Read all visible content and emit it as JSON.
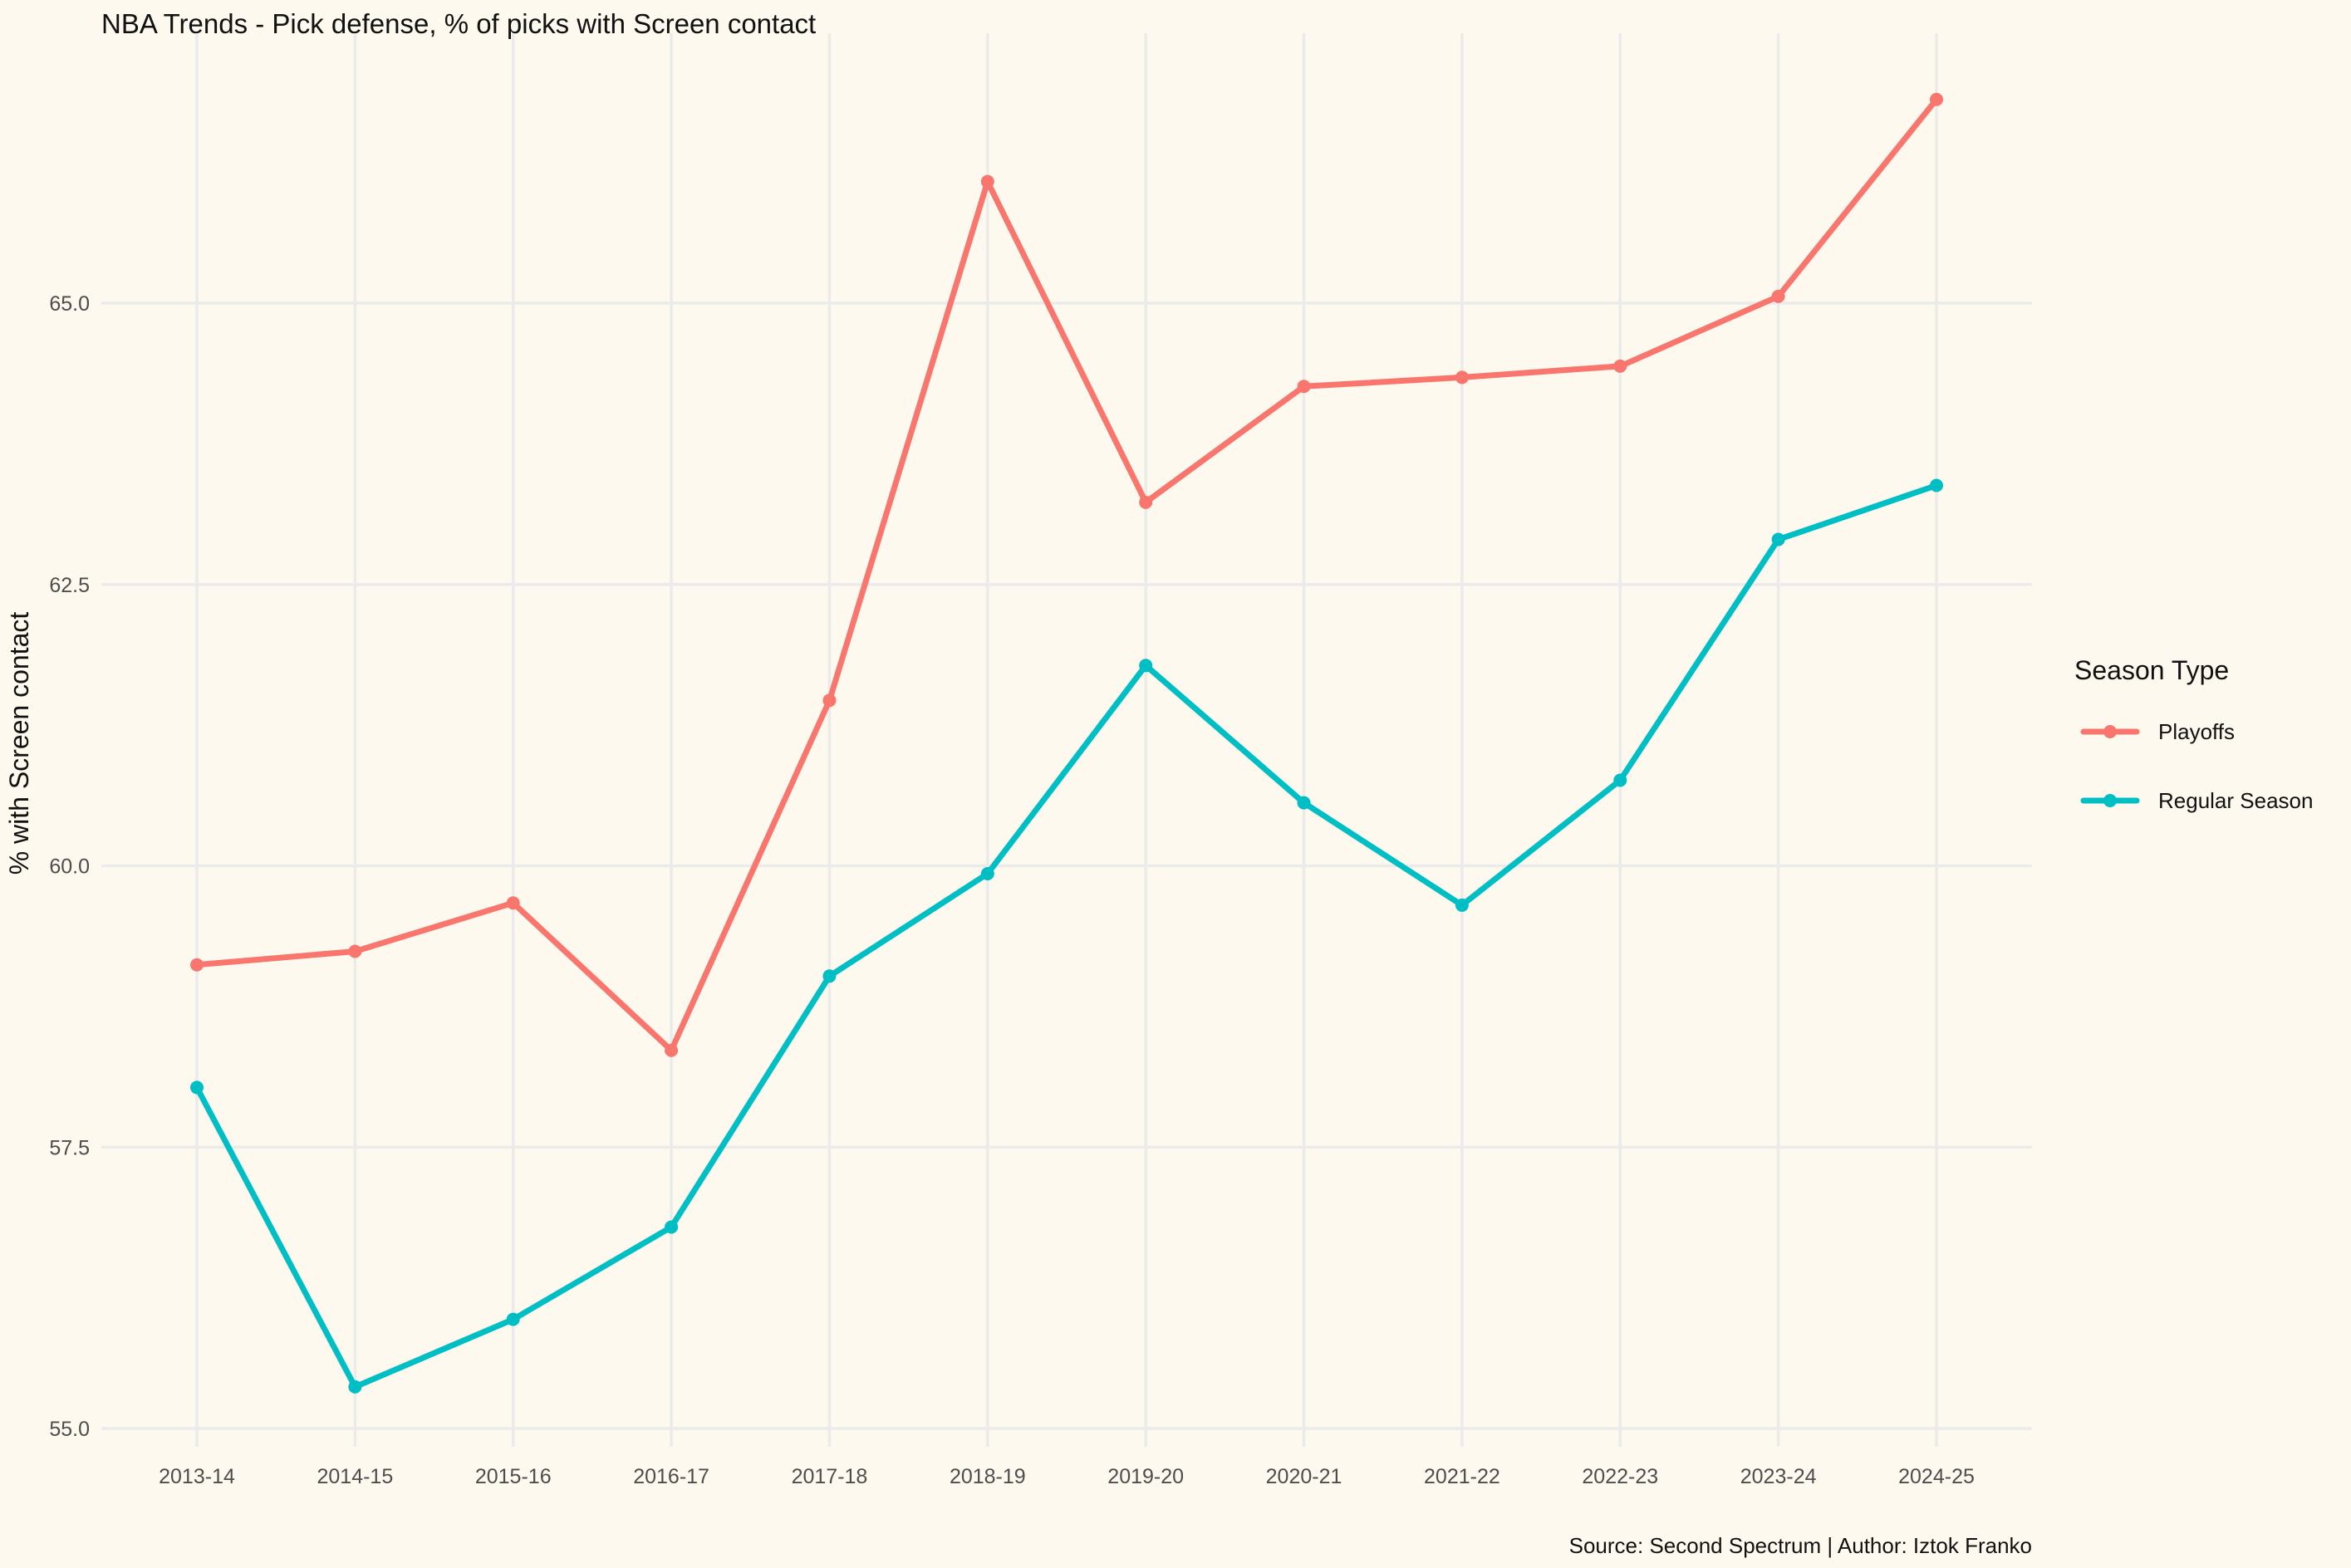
{
  "chart_data": {
    "type": "line",
    "title": "NBA Trends - Pick defense, % of picks with Screen contact",
    "xlabel": "",
    "ylabel": "% with Screen contact",
    "caption": "Source: Second Spectrum | Author: Iztok Franko",
    "categories": [
      "2013-14",
      "2014-15",
      "2015-16",
      "2016-17",
      "2017-18",
      "2018-19",
      "2019-20",
      "2020-21",
      "2021-22",
      "2022-23",
      "2023-24",
      "2024-25"
    ],
    "yticks": [
      55.0,
      57.5,
      60.0,
      62.5,
      65.0
    ],
    "ytick_labels": [
      "55.0",
      "57.5",
      "60.0",
      "62.5",
      "65.0"
    ],
    "ylim": [
      54.85,
      67.0
    ],
    "grid": true,
    "legend": {
      "title": "Season Type",
      "position": "right"
    },
    "series": [
      {
        "name": "Playoffs",
        "color": "#f8766d",
        "values": [
          59.12,
          59.24,
          59.67,
          58.36,
          61.47,
          66.08,
          63.23,
          64.26,
          64.34,
          64.44,
          65.06,
          66.81
        ]
      },
      {
        "name": "Regular Season",
        "color": "#00bfc4",
        "values": [
          58.03,
          55.37,
          55.97,
          56.79,
          59.02,
          59.93,
          61.78,
          60.56,
          59.65,
          60.76,
          62.9,
          63.38
        ]
      }
    ]
  }
}
